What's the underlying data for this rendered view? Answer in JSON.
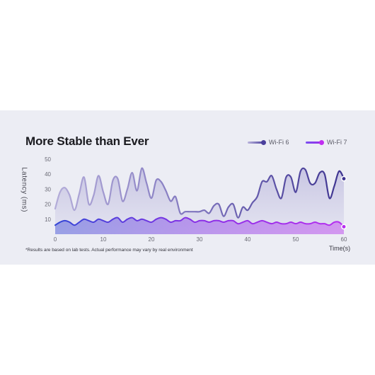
{
  "title": "More Stable than Ever",
  "footnote": "*Results are based on lab tests. Actual performance may vary by real environment",
  "colors": {
    "wifi6": "#4a3f9c",
    "wifi7": "#9b2ee8",
    "background": "#ecedf4"
  },
  "chart_data": {
    "type": "area",
    "ylabel": "Latency (ms)",
    "xlabel": "Time(s)",
    "xlim": [
      0,
      60
    ],
    "ylim": [
      0,
      50
    ],
    "xticks": [
      0,
      10,
      20,
      30,
      40,
      50,
      60
    ],
    "yticks": [
      10,
      20,
      30,
      40,
      50
    ],
    "grid": false,
    "legend": "top-right",
    "series": [
      {
        "name": "Wi-Fi 6",
        "x": [
          0,
          1,
          2,
          3,
          4,
          5,
          6,
          7,
          8,
          9,
          10,
          11,
          12,
          13,
          14,
          15,
          16,
          17,
          18,
          19,
          20,
          21,
          22,
          23,
          24,
          25,
          26,
          27,
          28,
          29,
          30,
          31,
          32,
          33,
          34,
          35,
          36,
          37,
          38,
          39,
          40,
          41,
          42,
          43,
          44,
          45,
          46,
          47,
          48,
          49,
          50,
          51,
          52,
          53,
          54,
          55,
          56,
          57,
          58,
          59,
          60
        ],
        "values": [
          17,
          28,
          31,
          26,
          16,
          27,
          38,
          20,
          26,
          39,
          28,
          20,
          36,
          37,
          22,
          30,
          41,
          29,
          44,
          34,
          24,
          36,
          35,
          29,
          22,
          25,
          14,
          15,
          15,
          15,
          15,
          16,
          14,
          19,
          20,
          12,
          18,
          20,
          11,
          18,
          16,
          21,
          25,
          35,
          35,
          39,
          30,
          24,
          38,
          38,
          28,
          42,
          43,
          34,
          34,
          41,
          40,
          24,
          32,
          42,
          37
        ]
      },
      {
        "name": "Wi-Fi 7",
        "x": [
          0,
          1,
          2,
          3,
          4,
          5,
          6,
          7,
          8,
          9,
          10,
          11,
          12,
          13,
          14,
          15,
          16,
          17,
          18,
          19,
          20,
          21,
          22,
          23,
          24,
          25,
          26,
          27,
          28,
          29,
          30,
          31,
          32,
          33,
          34,
          35,
          36,
          37,
          38,
          39,
          40,
          41,
          42,
          43,
          44,
          45,
          46,
          47,
          48,
          49,
          50,
          51,
          52,
          53,
          54,
          55,
          56,
          57,
          58,
          59,
          60
        ],
        "values": [
          6,
          8,
          9,
          8,
          6,
          8,
          10,
          9,
          8,
          10,
          9,
          8,
          10,
          11,
          8,
          10,
          11,
          9,
          10,
          9,
          8,
          10,
          11,
          10,
          8,
          9,
          9,
          11,
          10,
          8,
          9,
          9,
          8,
          9,
          9,
          8,
          9,
          9,
          7,
          8,
          9,
          7,
          8,
          9,
          8,
          7,
          8,
          7,
          7,
          8,
          7,
          8,
          7,
          7,
          8,
          7,
          7,
          6,
          8,
          8,
          5
        ]
      }
    ]
  }
}
